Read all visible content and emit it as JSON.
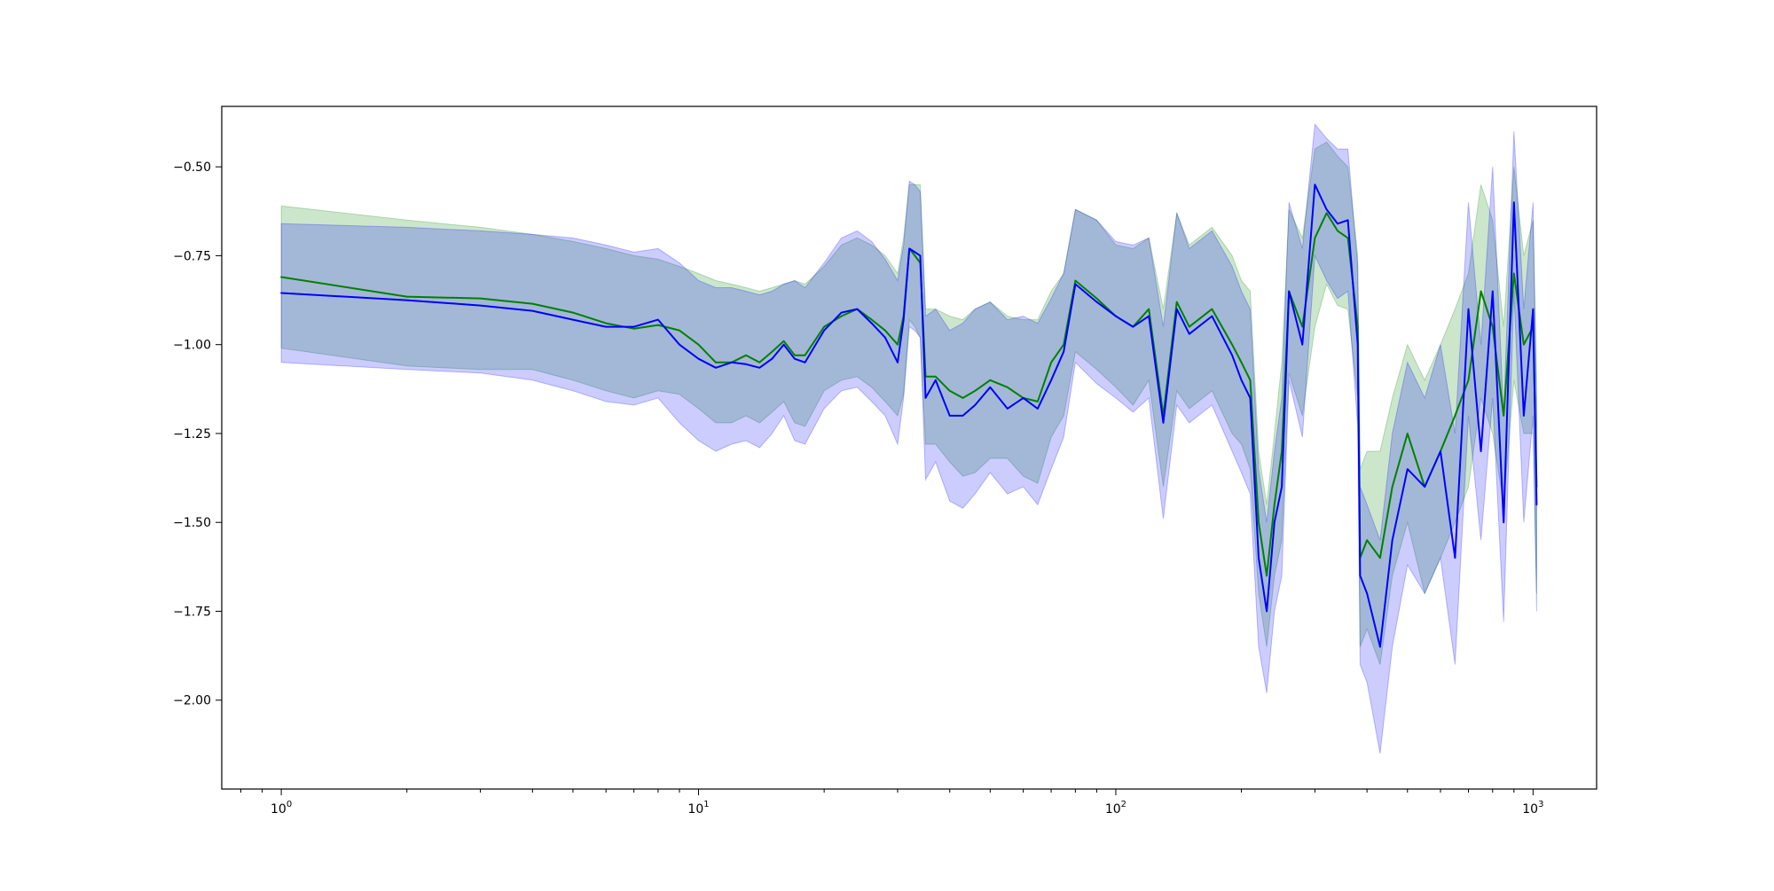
{
  "chart_data": {
    "type": "line",
    "title": "",
    "xlabel": "",
    "ylabel": "",
    "xscale": "log",
    "xlim": [
      0.72,
      1420
    ],
    "ylim": [
      -2.25,
      -0.33
    ],
    "grid": false,
    "x_tick_labels": [
      {
        "value": 1,
        "base": "10",
        "exp": "0"
      },
      {
        "value": 10,
        "base": "10",
        "exp": "1"
      },
      {
        "value": 100,
        "base": "10",
        "exp": "2"
      },
      {
        "value": 1000,
        "base": "10",
        "exp": "3"
      }
    ],
    "y_ticks": [
      -0.5,
      -0.75,
      -1.0,
      -1.25,
      -1.5,
      -1.75,
      -2.0
    ],
    "y_tick_labels": [
      "−0.50",
      "−0.75",
      "−1.00",
      "−1.25",
      "−1.50",
      "−1.75",
      "−2.00"
    ],
    "series": [
      {
        "color": "#008000",
        "band_color": "#008000",
        "x": [
          1,
          2,
          3,
          4,
          5,
          6,
          7,
          8,
          9,
          10,
          11,
          12,
          13,
          14,
          15,
          16,
          17,
          18,
          20,
          22,
          24,
          26,
          28,
          30,
          31,
          32,
          33,
          34,
          35,
          37,
          40,
          43,
          46,
          50,
          55,
          60,
          65,
          70,
          75,
          80,
          90,
          100,
          110,
          120,
          130,
          140,
          150,
          170,
          190,
          200,
          210,
          220,
          230,
          240,
          250,
          260,
          280,
          300,
          320,
          340,
          360,
          380,
          385,
          400,
          430,
          460,
          500,
          550,
          600,
          650,
          700,
          750,
          800,
          850,
          900,
          950,
          1000,
          1020
        ],
        "y": [
          -0.81,
          -0.865,
          -0.87,
          -0.885,
          -0.91,
          -0.94,
          -0.955,
          -0.945,
          -0.96,
          -1.0,
          -1.05,
          -1.05,
          -1.03,
          -1.05,
          -1.02,
          -0.99,
          -1.03,
          -1.03,
          -0.95,
          -0.92,
          -0.9,
          -0.93,
          -0.96,
          -1.0,
          -0.92,
          -0.73,
          -0.75,
          -0.77,
          -1.09,
          -1.09,
          -1.13,
          -1.15,
          -1.13,
          -1.1,
          -1.12,
          -1.15,
          -1.16,
          -1.05,
          -1.0,
          -0.82,
          -0.87,
          -0.92,
          -0.95,
          -0.9,
          -1.2,
          -0.88,
          -0.95,
          -0.9,
          -1.0,
          -1.05,
          -1.1,
          -1.5,
          -1.65,
          -1.45,
          -1.3,
          -0.85,
          -0.95,
          -0.7,
          -0.63,
          -0.68,
          -0.7,
          -0.95,
          -1.6,
          -1.55,
          -1.6,
          -1.4,
          -1.25,
          -1.4,
          -1.3,
          -1.2,
          -1.1,
          -0.85,
          -0.95,
          -1.2,
          -0.8,
          -1.0,
          -0.95,
          -1.4
        ]
      },
      {
        "color": "#0000ff",
        "band_color": "#0000ff",
        "x": [
          1,
          2,
          3,
          4,
          5,
          6,
          7,
          8,
          9,
          10,
          11,
          12,
          13,
          14,
          15,
          16,
          17,
          18,
          20,
          22,
          24,
          26,
          28,
          30,
          31,
          32,
          33,
          34,
          35,
          37,
          40,
          43,
          46,
          50,
          55,
          60,
          65,
          70,
          75,
          80,
          90,
          100,
          110,
          120,
          130,
          140,
          150,
          170,
          190,
          200,
          210,
          220,
          230,
          240,
          250,
          260,
          280,
          300,
          320,
          340,
          360,
          380,
          385,
          400,
          430,
          460,
          500,
          550,
          600,
          650,
          700,
          750,
          800,
          850,
          900,
          950,
          1000,
          1020
        ],
        "y": [
          -0.855,
          -0.875,
          -0.89,
          -0.905,
          -0.93,
          -0.95,
          -0.95,
          -0.93,
          -1.0,
          -1.04,
          -1.065,
          -1.05,
          -1.055,
          -1.065,
          -1.04,
          -1.0,
          -1.04,
          -1.05,
          -0.96,
          -0.91,
          -0.9,
          -0.94,
          -0.98,
          -1.05,
          -0.93,
          -0.73,
          -0.74,
          -0.75,
          -1.15,
          -1.1,
          -1.2,
          -1.2,
          -1.17,
          -1.12,
          -1.18,
          -1.15,
          -1.18,
          -1.1,
          -1.02,
          -0.83,
          -0.88,
          -0.92,
          -0.95,
          -0.92,
          -1.22,
          -0.9,
          -0.97,
          -0.92,
          -1.03,
          -1.1,
          -1.15,
          -1.6,
          -1.75,
          -1.5,
          -1.4,
          -0.85,
          -1.0,
          -0.55,
          -0.62,
          -0.66,
          -0.65,
          -1.0,
          -1.65,
          -1.7,
          -1.85,
          -1.55,
          -1.35,
          -1.4,
          -1.3,
          -1.6,
          -0.9,
          -1.3,
          -0.85,
          -1.5,
          -0.6,
          -1.2,
          -0.9,
          -1.45
        ]
      }
    ],
    "bands": [
      {
        "color": "#008000",
        "x": [
          1,
          2,
          3,
          4,
          5,
          6,
          7,
          8,
          9,
          10,
          11,
          12,
          13,
          14,
          15,
          16,
          17,
          18,
          20,
          22,
          24,
          26,
          28,
          30,
          31,
          32,
          33,
          34,
          35,
          37,
          40,
          43,
          46,
          50,
          55,
          60,
          65,
          70,
          75,
          80,
          90,
          100,
          110,
          120,
          130,
          140,
          150,
          170,
          190,
          200,
          210,
          220,
          230,
          240,
          250,
          260,
          280,
          300,
          320,
          340,
          360,
          380,
          385,
          400,
          430,
          460,
          500,
          550,
          600,
          650,
          700,
          750,
          800,
          850,
          900,
          950,
          1000,
          1020
        ],
        "upper": [
          -0.61,
          -0.65,
          -0.67,
          -0.69,
          -0.71,
          -0.73,
          -0.75,
          -0.76,
          -0.78,
          -0.8,
          -0.82,
          -0.83,
          -0.84,
          -0.85,
          -0.84,
          -0.83,
          -0.82,
          -0.83,
          -0.78,
          -0.72,
          -0.7,
          -0.72,
          -0.75,
          -0.8,
          -0.7,
          -0.55,
          -0.55,
          -0.55,
          -0.9,
          -0.9,
          -0.92,
          -0.93,
          -0.9,
          -0.88,
          -0.92,
          -0.93,
          -0.93,
          -0.85,
          -0.8,
          -0.62,
          -0.65,
          -0.72,
          -0.73,
          -0.7,
          -0.9,
          -0.63,
          -0.72,
          -0.67,
          -0.75,
          -0.82,
          -0.85,
          -1.3,
          -1.45,
          -1.25,
          -1.05,
          -0.62,
          -0.7,
          -0.45,
          -0.43,
          -0.47,
          -0.5,
          -0.75,
          -1.35,
          -1.3,
          -1.3,
          -1.15,
          -1.0,
          -1.1,
          -1.0,
          -0.9,
          -0.8,
          -0.55,
          -0.65,
          -0.95,
          -0.5,
          -0.75,
          -0.65,
          -1.1
        ],
        "lower": [
          -1.01,
          -1.06,
          -1.07,
          -1.07,
          -1.1,
          -1.13,
          -1.15,
          -1.13,
          -1.14,
          -1.18,
          -1.22,
          -1.22,
          -1.2,
          -1.22,
          -1.19,
          -1.16,
          -1.22,
          -1.23,
          -1.13,
          -1.1,
          -1.09,
          -1.12,
          -1.16,
          -1.2,
          -1.14,
          -0.93,
          -0.95,
          -0.98,
          -1.28,
          -1.28,
          -1.33,
          -1.37,
          -1.36,
          -1.32,
          -1.32,
          -1.37,
          -1.39,
          -1.26,
          -1.2,
          -1.02,
          -1.07,
          -1.12,
          -1.17,
          -1.1,
          -1.4,
          -1.13,
          -1.18,
          -1.13,
          -1.25,
          -1.28,
          -1.35,
          -1.7,
          -1.85,
          -1.65,
          -1.55,
          -1.08,
          -1.2,
          -0.95,
          -0.83,
          -0.89,
          -0.9,
          -1.15,
          -1.85,
          -1.8,
          -1.9,
          -1.65,
          -1.5,
          -1.7,
          -1.6,
          -1.5,
          -1.4,
          -1.15,
          -1.25,
          -1.45,
          -1.1,
          -1.25,
          -1.25,
          -1.7
        ]
      },
      {
        "color": "#0000ff",
        "x": [
          1,
          2,
          3,
          4,
          5,
          6,
          7,
          8,
          9,
          10,
          11,
          12,
          13,
          14,
          15,
          16,
          17,
          18,
          20,
          22,
          24,
          26,
          28,
          30,
          31,
          32,
          33,
          34,
          35,
          37,
          40,
          43,
          46,
          50,
          55,
          60,
          65,
          70,
          75,
          80,
          90,
          100,
          110,
          120,
          130,
          140,
          150,
          170,
          190,
          200,
          210,
          220,
          230,
          240,
          250,
          260,
          280,
          300,
          320,
          340,
          360,
          380,
          385,
          400,
          430,
          460,
          500,
          550,
          600,
          650,
          700,
          750,
          800,
          850,
          900,
          950,
          1000,
          1020
        ],
        "upper": [
          -0.66,
          -0.67,
          -0.68,
          -0.69,
          -0.7,
          -0.72,
          -0.74,
          -0.73,
          -0.77,
          -0.82,
          -0.84,
          -0.84,
          -0.85,
          -0.86,
          -0.85,
          -0.83,
          -0.82,
          -0.84,
          -0.77,
          -0.7,
          -0.68,
          -0.71,
          -0.76,
          -0.82,
          -0.72,
          -0.54,
          -0.55,
          -0.57,
          -0.92,
          -0.9,
          -0.96,
          -0.94,
          -0.9,
          -0.88,
          -0.93,
          -0.92,
          -0.94,
          -0.87,
          -0.8,
          -0.62,
          -0.65,
          -0.71,
          -0.72,
          -0.7,
          -0.95,
          -0.63,
          -0.73,
          -0.68,
          -0.78,
          -0.85,
          -0.9,
          -1.35,
          -1.5,
          -1.3,
          -1.15,
          -0.6,
          -0.73,
          -0.38,
          -0.42,
          -0.45,
          -0.45,
          -0.78,
          -1.4,
          -1.45,
          -1.55,
          -1.25,
          -1.05,
          -1.15,
          -1.0,
          -1.25,
          -0.6,
          -1.0,
          -0.5,
          -1.2,
          -0.4,
          -0.9,
          -0.6,
          -1.2
        ],
        "lower": [
          -1.05,
          -1.07,
          -1.08,
          -1.1,
          -1.13,
          -1.16,
          -1.17,
          -1.15,
          -1.22,
          -1.27,
          -1.3,
          -1.28,
          -1.27,
          -1.29,
          -1.25,
          -1.2,
          -1.27,
          -1.28,
          -1.18,
          -1.13,
          -1.12,
          -1.16,
          -1.2,
          -1.28,
          -1.15,
          -0.95,
          -0.96,
          -0.98,
          -1.38,
          -1.33,
          -1.44,
          -1.46,
          -1.42,
          -1.36,
          -1.42,
          -1.4,
          -1.45,
          -1.35,
          -1.26,
          -1.05,
          -1.11,
          -1.15,
          -1.19,
          -1.15,
          -1.49,
          -1.17,
          -1.22,
          -1.17,
          -1.3,
          -1.36,
          -1.42,
          -1.85,
          -1.98,
          -1.75,
          -1.65,
          -1.1,
          -1.26,
          -0.75,
          -0.82,
          -0.87,
          -0.85,
          -1.23,
          -1.9,
          -1.95,
          -2.15,
          -1.85,
          -1.62,
          -1.7,
          -1.6,
          -1.9,
          -1.2,
          -1.55,
          -1.15,
          -1.78,
          -0.85,
          -1.5,
          -1.2,
          -1.75
        ]
      }
    ]
  }
}
